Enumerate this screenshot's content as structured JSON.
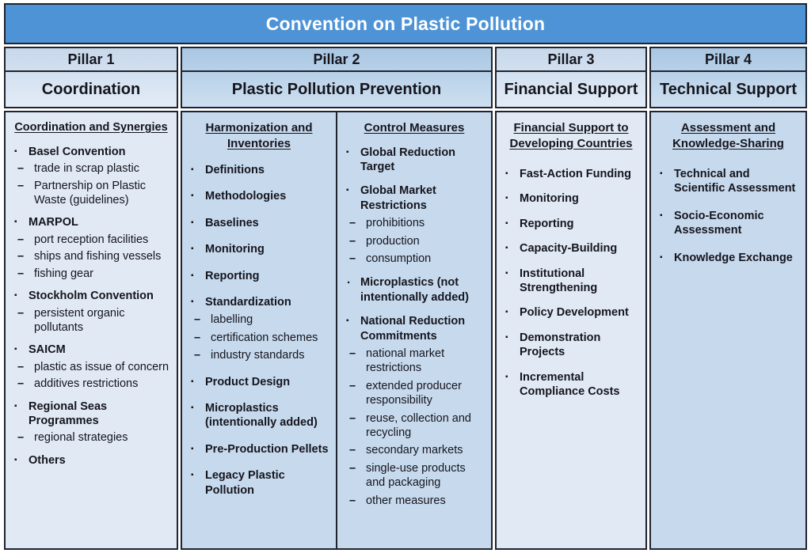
{
  "title": "Convention on Plastic Pollution",
  "colors": {
    "title_bg": "#4e93d5",
    "title_text": "#ffffff",
    "border": "#20242f",
    "light_column_bg": "#e0e9f4",
    "dark_column_bg": "#c6d9ed",
    "text": "#15151d"
  },
  "pillars": [
    {
      "label": "Pillar 1",
      "name": "Coordination"
    },
    {
      "label": "Pillar 2",
      "name": "Plastic Pollution Prevention"
    },
    {
      "label": "Pillar 3",
      "name": "Financial Support"
    },
    {
      "label": "Pillar 4",
      "name": "Technical Support"
    }
  ],
  "columns": {
    "coordination": {
      "heading": "Coordination and Synergies",
      "items": [
        {
          "type": "bullet",
          "text": "Basel Convention"
        },
        {
          "type": "dash",
          "text": "trade in scrap plastic"
        },
        {
          "type": "dash",
          "text": "Partnership on Plastic Waste (guidelines)"
        },
        {
          "type": "bullet",
          "text": "MARPOL"
        },
        {
          "type": "dash",
          "text": "port reception facilities"
        },
        {
          "type": "dash",
          "text": "ships and fishing vessels"
        },
        {
          "type": "dash",
          "text": "fishing gear"
        },
        {
          "type": "bullet",
          "text": "Stockholm Convention"
        },
        {
          "type": "dash",
          "text": "persistent organic pollutants"
        },
        {
          "type": "bullet",
          "text": "SAICM"
        },
        {
          "type": "dash",
          "text": "plastic as issue of concern"
        },
        {
          "type": "dash",
          "text": "additives restrictions"
        },
        {
          "type": "bullet",
          "text": "Regional Seas Programmes"
        },
        {
          "type": "dash",
          "text": "regional strategies"
        },
        {
          "type": "bullet",
          "text": "Others"
        }
      ]
    },
    "harmonization": {
      "heading": "Harmonization and Inventories",
      "items": [
        {
          "type": "bullet",
          "text": "Definitions"
        },
        {
          "type": "bullet",
          "text": "Methodologies"
        },
        {
          "type": "bullet",
          "text": "Baselines"
        },
        {
          "type": "bullet",
          "text": "Monitoring"
        },
        {
          "type": "bullet",
          "text": "Reporting"
        },
        {
          "type": "bullet",
          "text": "Standardization"
        },
        {
          "type": "dash",
          "text": "labelling"
        },
        {
          "type": "dash",
          "text": "certification schemes"
        },
        {
          "type": "dash",
          "text": "industry standards"
        },
        {
          "type": "bullet",
          "text": "Product Design"
        },
        {
          "type": "bullet",
          "text": "Microplastics (intentionally added)"
        },
        {
          "type": "bullet",
          "text": "Pre-Production Pellets"
        },
        {
          "type": "bullet",
          "text": "Legacy Plastic Pollution"
        }
      ]
    },
    "control": {
      "heading": "Control Measures",
      "items": [
        {
          "type": "bullet",
          "text": "Global Reduction Target"
        },
        {
          "type": "bullet",
          "text": "Global Market Restrictions"
        },
        {
          "type": "dash",
          "text": "prohibitions"
        },
        {
          "type": "dash",
          "text": "production"
        },
        {
          "type": "dash",
          "text": "consumption"
        },
        {
          "type": "dot",
          "text": "Microplastics (not intentionally added)"
        },
        {
          "type": "bullet",
          "text": "National Reduction Commitments"
        },
        {
          "type": "dash",
          "text": "national market restrictions"
        },
        {
          "type": "dash",
          "text": "extended producer responsibility"
        },
        {
          "type": "dash",
          "text": "reuse, collection and recycling"
        },
        {
          "type": "dash",
          "text": "secondary markets"
        },
        {
          "type": "dash",
          "text": "single-use products and packaging"
        },
        {
          "type": "dash",
          "text": "other measures"
        }
      ]
    },
    "financial": {
      "heading": "Financial Support to Developing Countries",
      "items": [
        {
          "type": "bullet",
          "text": "Fast-Action Funding"
        },
        {
          "type": "bullet",
          "text": "Monitoring"
        },
        {
          "type": "bullet",
          "text": "Reporting"
        },
        {
          "type": "bullet",
          "text": "Capacity-Building"
        },
        {
          "type": "bullet",
          "text": "Institutional Strengthening"
        },
        {
          "type": "bullet",
          "text": "Policy Development"
        },
        {
          "type": "bullet",
          "text": "Demonstration Projects"
        },
        {
          "type": "bullet",
          "text": "Incremental Compliance Costs"
        }
      ]
    },
    "technical": {
      "heading": "Assessment and Knowledge-Sharing",
      "items": [
        {
          "type": "bullet",
          "text": "Technical and Scientific Assessment"
        },
        {
          "type": "bullet",
          "text": "Socio-Economic Assessment"
        },
        {
          "type": "bullet",
          "text": "Knowledge Exchange"
        }
      ]
    }
  }
}
